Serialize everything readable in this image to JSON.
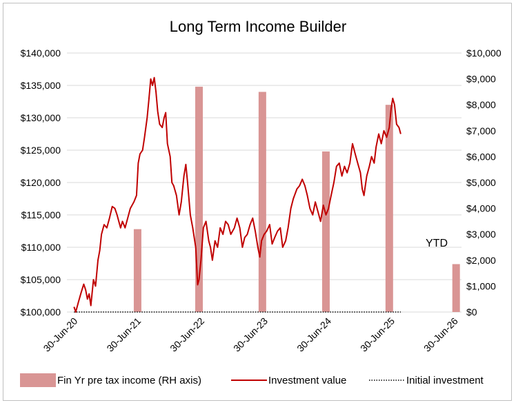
{
  "chart_data": {
    "type": "bar+line",
    "title": "Long Term Income Builder",
    "x_ticks": [
      "30-Jun-20",
      "30-Jun-21",
      "30-Jun-22",
      "30-Jun-23",
      "30-Jun-24",
      "30-Jun-25",
      "30-Jun-26"
    ],
    "left_axis": {
      "ylim": [
        100000,
        140000
      ],
      "ticks": [
        "$100,000",
        "$105,000",
        "$110,000",
        "$115,000",
        "$120,000",
        "$125,000",
        "$130,000",
        "$135,000",
        "$140,000"
      ]
    },
    "right_axis": {
      "ylim": [
        0,
        10000
      ],
      "ticks": [
        "$0",
        "$1,000",
        "$2,000",
        "$3,000",
        "$4,000",
        "$5,000",
        "$6,000",
        "$7,000",
        "$8,000",
        "$9,000",
        "$10,000"
      ]
    },
    "bar_series": {
      "name": "Fin Yr pre tax income (RH axis)",
      "color": "#d99594",
      "points": [
        {
          "x": "2021-07-01",
          "y": 3200
        },
        {
          "x": "2022-06-20",
          "y": 8700
        },
        {
          "x": "2023-06-20",
          "y": 8500
        },
        {
          "x": "2024-06-20",
          "y": 6200
        },
        {
          "x": "2025-06-20",
          "y": 8000
        },
        {
          "x": "2026-07-10",
          "y": 1850
        }
      ]
    },
    "line_series": {
      "name": "Investment value",
      "color": "#c00000",
      "points": [
        [
          "2020-06-30",
          100800
        ],
        [
          "2020-07-10",
          100000
        ],
        [
          "2020-07-25",
          101500
        ],
        [
          "2020-08-10",
          103000
        ],
        [
          "2020-08-25",
          104300
        ],
        [
          "2020-09-05",
          103400
        ],
        [
          "2020-09-15",
          102000
        ],
        [
          "2020-09-25",
          102800
        ],
        [
          "2020-10-05",
          101000
        ],
        [
          "2020-10-20",
          105000
        ],
        [
          "2020-11-01",
          104000
        ],
        [
          "2020-11-15",
          108000
        ],
        [
          "2020-11-25",
          109500
        ],
        [
          "2020-12-05",
          112000
        ],
        [
          "2020-12-20",
          113500
        ],
        [
          "2021-01-05",
          113000
        ],
        [
          "2021-01-20",
          114500
        ],
        [
          "2021-02-05",
          116300
        ],
        [
          "2021-02-20",
          116000
        ],
        [
          "2021-03-05",
          115000
        ],
        [
          "2021-03-15",
          114000
        ],
        [
          "2021-03-25",
          113000
        ],
        [
          "2021-04-05",
          114000
        ],
        [
          "2021-04-20",
          113000
        ],
        [
          "2021-05-05",
          114500
        ],
        [
          "2021-05-20",
          116000
        ],
        [
          "2021-06-10",
          117000
        ],
        [
          "2021-06-25",
          118000
        ],
        [
          "2021-07-05",
          123000
        ],
        [
          "2021-07-15",
          124400
        ],
        [
          "2021-07-30",
          125000
        ],
        [
          "2021-08-10",
          127000
        ],
        [
          "2021-08-25",
          130000
        ],
        [
          "2021-09-05",
          133000
        ],
        [
          "2021-09-15",
          136000
        ],
        [
          "2021-09-25",
          135000
        ],
        [
          "2021-10-05",
          136200
        ],
        [
          "2021-10-15",
          134000
        ],
        [
          "2021-10-25",
          131000
        ],
        [
          "2021-11-05",
          129000
        ],
        [
          "2021-11-20",
          128500
        ],
        [
          "2021-12-01",
          130000
        ],
        [
          "2021-12-10",
          130800
        ],
        [
          "2021-12-20",
          126000
        ],
        [
          "2022-01-05",
          124000
        ],
        [
          "2022-01-15",
          120000
        ],
        [
          "2022-01-25",
          119500
        ],
        [
          "2022-02-10",
          118000
        ],
        [
          "2022-02-25",
          115000
        ],
        [
          "2022-03-10",
          117000
        ],
        [
          "2022-03-25",
          121000
        ],
        [
          "2022-04-05",
          122800
        ],
        [
          "2022-04-15",
          120000
        ],
        [
          "2022-05-01",
          115000
        ],
        [
          "2022-05-15",
          113000
        ],
        [
          "2022-06-01",
          110000
        ],
        [
          "2022-06-12",
          104200
        ],
        [
          "2022-06-20",
          105000
        ],
        [
          "2022-07-01",
          108000
        ],
        [
          "2022-07-15",
          113000
        ],
        [
          "2022-07-30",
          114000
        ],
        [
          "2022-08-15",
          111000
        ],
        [
          "2022-08-25",
          110000
        ],
        [
          "2022-09-05",
          108000
        ],
        [
          "2022-09-20",
          111000
        ],
        [
          "2022-10-05",
          110000
        ],
        [
          "2022-10-20",
          113000
        ],
        [
          "2022-11-05",
          112000
        ],
        [
          "2022-11-20",
          114000
        ],
        [
          "2022-12-05",
          113500
        ],
        [
          "2022-12-20",
          112000
        ],
        [
          "2023-01-10",
          113000
        ],
        [
          "2023-01-25",
          114500
        ],
        [
          "2023-02-10",
          113000
        ],
        [
          "2023-02-25",
          110000
        ],
        [
          "2023-03-10",
          111500
        ],
        [
          "2023-03-25",
          112000
        ],
        [
          "2023-04-10",
          113500
        ],
        [
          "2023-04-25",
          114500
        ],
        [
          "2023-05-10",
          112500
        ],
        [
          "2023-05-25",
          110000
        ],
        [
          "2023-06-05",
          108500
        ],
        [
          "2023-06-15",
          111000
        ],
        [
          "2023-06-30",
          112000
        ],
        [
          "2023-07-15",
          112500
        ],
        [
          "2023-08-01",
          113500
        ],
        [
          "2023-08-15",
          110500
        ],
        [
          "2023-08-30",
          111500
        ],
        [
          "2023-09-15",
          112500
        ],
        [
          "2023-10-01",
          113000
        ],
        [
          "2023-10-15",
          110000
        ],
        [
          "2023-11-01",
          111000
        ],
        [
          "2023-11-15",
          113000
        ],
        [
          "2023-12-01",
          116000
        ],
        [
          "2023-12-15",
          117500
        ],
        [
          "2024-01-05",
          119000
        ],
        [
          "2024-01-20",
          119500
        ],
        [
          "2024-02-05",
          120500
        ],
        [
          "2024-02-20",
          119500
        ],
        [
          "2024-03-05",
          118000
        ],
        [
          "2024-03-20",
          116000
        ],
        [
          "2024-04-05",
          115000
        ],
        [
          "2024-04-20",
          117000
        ],
        [
          "2024-05-05",
          115500
        ],
        [
          "2024-05-20",
          114000
        ],
        [
          "2024-06-05",
          116500
        ],
        [
          "2024-06-20",
          115000
        ],
        [
          "2024-07-05",
          116000
        ],
        [
          "2024-07-20",
          118000
        ],
        [
          "2024-08-05",
          120000
        ],
        [
          "2024-08-20",
          122500
        ],
        [
          "2024-09-05",
          123000
        ],
        [
          "2024-09-20",
          121000
        ],
        [
          "2024-10-05",
          122500
        ],
        [
          "2024-10-20",
          121500
        ],
        [
          "2024-11-05",
          123000
        ],
        [
          "2024-11-20",
          126000
        ],
        [
          "2024-12-05",
          124500
        ],
        [
          "2024-12-20",
          123000
        ],
        [
          "2025-01-05",
          121500
        ],
        [
          "2025-01-15",
          119000
        ],
        [
          "2025-01-25",
          118000
        ],
        [
          "2025-02-10",
          121000
        ],
        [
          "2025-02-25",
          122500
        ],
        [
          "2025-03-10",
          124000
        ],
        [
          "2025-03-25",
          123000
        ],
        [
          "2025-04-05",
          125500
        ],
        [
          "2025-04-20",
          127500
        ],
        [
          "2025-05-05",
          126000
        ],
        [
          "2025-05-20",
          128000
        ],
        [
          "2025-06-05",
          127000
        ],
        [
          "2025-06-20",
          128500
        ],
        [
          "2025-07-01",
          131500
        ],
        [
          "2025-07-10",
          133000
        ],
        [
          "2025-07-20",
          132000
        ],
        [
          "2025-08-01",
          129000
        ],
        [
          "2025-08-15",
          128500
        ],
        [
          "2025-08-25",
          127500
        ]
      ]
    },
    "reference_line": {
      "name": "Initial investment",
      "y": 100000,
      "x_start": "2020-06-30",
      "x_end": "2025-08-25",
      "style": "dotted",
      "color": "#404040"
    },
    "x_range": [
      "2020-05-20",
      "2026-08-10"
    ],
    "annotations": [
      {
        "text": "YTD"
      }
    ],
    "grid": "horizontal",
    "legend_position": "bottom"
  }
}
